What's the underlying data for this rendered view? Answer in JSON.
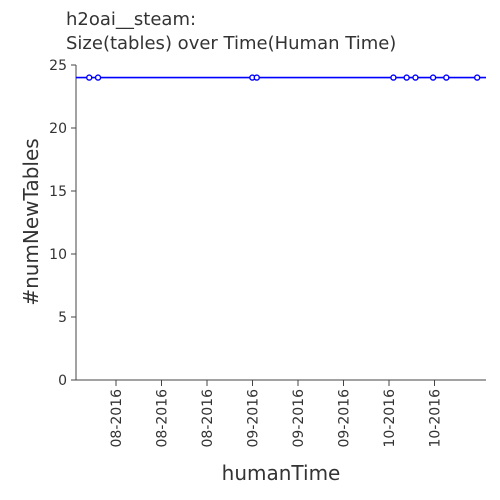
{
  "chart_data": {
    "type": "line",
    "title_line1": "h2oai__steam:",
    "title_line2": "Size(tables) over Time(Human Time)",
    "xlabel": "humanTime",
    "ylabel": "#numNewTables",
    "ylim": [
      0,
      25
    ],
    "yticks": [
      "0",
      "5",
      "10",
      "15",
      "20",
      "25"
    ],
    "xticks": [
      "08-2016",
      "08-2016",
      "08-2016",
      "09-2016",
      "09-2016",
      "09-2016",
      "10-2016",
      "10-2016"
    ],
    "grid": false,
    "series": [
      {
        "color": "#0000ff",
        "x": [
          "2016-07-21",
          "2016-07-23",
          "2016-08-27",
          "2016-08-28",
          "2016-09-28",
          "2016-10-01",
          "2016-10-03",
          "2016-10-07",
          "2016-10-10",
          "2016-10-17"
        ],
        "values": [
          24,
          24,
          24,
          24,
          24,
          24,
          24,
          24,
          24,
          24
        ]
      }
    ]
  }
}
